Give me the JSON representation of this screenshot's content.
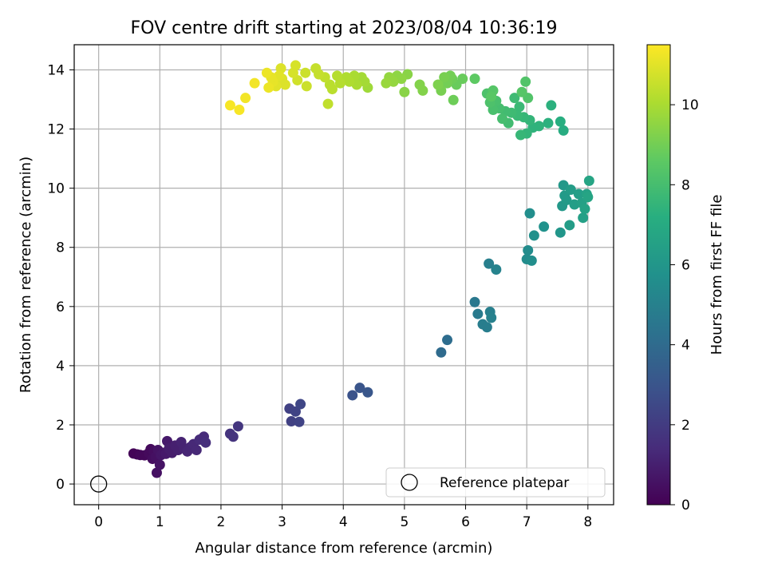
{
  "chart_data": {
    "type": "scatter",
    "title": "FOV centre drift starting at 2023/08/04 10:36:19",
    "xlabel": "Angular distance from reference (arcmin)",
    "ylabel": "Rotation from reference (arcmin)",
    "xlim": [
      -0.4,
      8.42
    ],
    "ylim": [
      -0.7,
      14.85
    ],
    "xticks": [
      "0",
      "1",
      "2",
      "3",
      "4",
      "5",
      "6",
      "7",
      "8"
    ],
    "yticks": [
      "0",
      "2",
      "4",
      "6",
      "8",
      "10",
      "12",
      "14"
    ],
    "grid": true,
    "legend": {
      "placement": "lower right",
      "entries": [
        "Reference platepar"
      ]
    },
    "colorbar": {
      "label": "Hours from first FF file",
      "colormap": "viridis",
      "range": [
        0,
        11.5
      ],
      "ticks": [
        "0",
        "2",
        "4",
        "6",
        "8",
        "10"
      ]
    },
    "reference_point": {
      "x": 0,
      "y": 0
    },
    "points": [
      [
        0.57,
        1.03,
        0.1
      ],
      [
        0.63,
        1.0,
        0.1
      ],
      [
        0.68,
        0.98,
        0.2
      ],
      [
        0.75,
        0.97,
        0.2
      ],
      [
        0.82,
        1.05,
        0.3
      ],
      [
        0.85,
        1.18,
        0.3
      ],
      [
        0.88,
        0.85,
        0.4
      ],
      [
        0.9,
        1.1,
        0.4
      ],
      [
        0.93,
        0.92,
        0.5
      ],
      [
        0.95,
        0.38,
        0.5
      ],
      [
        0.97,
        1.15,
        0.6
      ],
      [
        1.0,
        0.65,
        0.6
      ],
      [
        1.02,
        0.98,
        0.7
      ],
      [
        1.05,
        1.05,
        0.7
      ],
      [
        1.1,
        1.02,
        0.8
      ],
      [
        1.12,
        1.45,
        0.8
      ],
      [
        1.15,
        1.2,
        0.9
      ],
      [
        1.2,
        1.05,
        0.9
      ],
      [
        1.25,
        1.3,
        1.0
      ],
      [
        1.3,
        1.15,
        1.0
      ],
      [
        1.35,
        1.42,
        1.1
      ],
      [
        1.4,
        1.2,
        1.1
      ],
      [
        1.45,
        1.1,
        1.2
      ],
      [
        1.5,
        1.25,
        1.2
      ],
      [
        1.55,
        1.35,
        1.3
      ],
      [
        1.6,
        1.15,
        1.3
      ],
      [
        1.65,
        1.5,
        1.4
      ],
      [
        1.72,
        1.6,
        1.4
      ],
      [
        1.75,
        1.4,
        1.5
      ],
      [
        2.15,
        1.7,
        1.7
      ],
      [
        2.2,
        1.6,
        1.7
      ],
      [
        2.28,
        1.95,
        1.8
      ],
      [
        3.12,
        2.55,
        2.2
      ],
      [
        3.15,
        2.12,
        2.2
      ],
      [
        3.22,
        2.45,
        2.3
      ],
      [
        3.28,
        2.1,
        2.3
      ],
      [
        3.3,
        2.7,
        2.4
      ],
      [
        4.15,
        3.0,
        2.9
      ],
      [
        4.27,
        3.25,
        3.0
      ],
      [
        4.4,
        3.1,
        3.1
      ],
      [
        5.6,
        4.45,
        4.0
      ],
      [
        5.7,
        4.87,
        4.1
      ],
      [
        6.15,
        6.15,
        4.6
      ],
      [
        6.2,
        5.75,
        4.7
      ],
      [
        6.28,
        5.4,
        4.8
      ],
      [
        6.35,
        5.3,
        4.8
      ],
      [
        6.38,
        7.45,
        4.9
      ],
      [
        6.4,
        5.82,
        4.9
      ],
      [
        6.42,
        5.62,
        5.0
      ],
      [
        6.5,
        7.25,
        5.1
      ],
      [
        7.0,
        7.6,
        5.5
      ],
      [
        7.02,
        7.9,
        5.5
      ],
      [
        7.05,
        9.15,
        5.6
      ],
      [
        7.08,
        7.55,
        5.6
      ],
      [
        7.12,
        8.4,
        5.7
      ],
      [
        7.28,
        8.7,
        5.8
      ],
      [
        7.55,
        8.5,
        6.0
      ],
      [
        7.58,
        9.4,
        6.1
      ],
      [
        7.6,
        10.1,
        6.1
      ],
      [
        7.62,
        9.75,
        6.2
      ],
      [
        7.65,
        9.6,
        6.2
      ],
      [
        7.7,
        8.75,
        6.3
      ],
      [
        7.72,
        9.95,
        6.3
      ],
      [
        7.78,
        9.45,
        6.4
      ],
      [
        7.85,
        9.8,
        6.4
      ],
      [
        7.9,
        9.5,
        6.5
      ],
      [
        7.92,
        9.0,
        6.5
      ],
      [
        7.95,
        9.3,
        6.6
      ],
      [
        7.98,
        9.8,
        6.6
      ],
      [
        8.0,
        9.7,
        6.7
      ],
      [
        8.02,
        10.25,
        6.7
      ],
      [
        7.6,
        11.95,
        7.1
      ],
      [
        7.55,
        12.25,
        7.2
      ],
      [
        7.4,
        12.8,
        7.3
      ],
      [
        7.35,
        12.2,
        7.3
      ],
      [
        7.2,
        12.1,
        7.4
      ],
      [
        7.1,
        12.05,
        7.4
      ],
      [
        7.05,
        12.3,
        7.5
      ],
      [
        7.0,
        11.85,
        7.5
      ],
      [
        6.95,
        12.4,
        7.6
      ],
      [
        6.9,
        11.8,
        7.6
      ],
      [
        6.88,
        12.75,
        7.7
      ],
      [
        6.85,
        12.45,
        7.7
      ],
      [
        6.8,
        13.05,
        7.8
      ],
      [
        6.75,
        12.55,
        7.8
      ],
      [
        6.7,
        12.2,
        7.9
      ],
      [
        6.65,
        12.6,
        7.9
      ],
      [
        6.6,
        12.35,
        8.0
      ],
      [
        6.55,
        12.7,
        8.0
      ],
      [
        6.5,
        12.95,
        8.1
      ],
      [
        6.45,
        12.65,
        8.1
      ],
      [
        6.4,
        12.9,
        8.2
      ],
      [
        6.35,
        13.2,
        8.2
      ],
      [
        6.98,
        13.6,
        8.3
      ],
      [
        7.02,
        13.05,
        8.3
      ],
      [
        6.92,
        13.25,
        8.4
      ],
      [
        6.45,
        13.3,
        8.4
      ],
      [
        6.42,
        13.1,
        8.5
      ],
      [
        6.15,
        13.7,
        8.6
      ],
      [
        5.95,
        13.7,
        8.8
      ],
      [
        5.85,
        13.5,
        8.8
      ],
      [
        5.8,
        12.98,
        8.9
      ],
      [
        5.78,
        13.7,
        8.9
      ],
      [
        5.75,
        13.8,
        9.0
      ],
      [
        5.7,
        13.55,
        9.0
      ],
      [
        5.65,
        13.75,
        9.1
      ],
      [
        5.6,
        13.3,
        9.1
      ],
      [
        5.55,
        13.5,
        9.2
      ],
      [
        5.3,
        13.3,
        9.3
      ],
      [
        5.25,
        13.5,
        9.3
      ],
      [
        5.05,
        13.85,
        9.4
      ],
      [
        5.0,
        13.25,
        9.4
      ],
      [
        4.95,
        13.7,
        9.5
      ],
      [
        4.88,
        13.8,
        9.5
      ],
      [
        4.82,
        13.6,
        9.6
      ],
      [
        4.75,
        13.75,
        9.6
      ],
      [
        4.7,
        13.55,
        9.7
      ],
      [
        4.4,
        13.4,
        9.8
      ],
      [
        4.35,
        13.6,
        9.9
      ],
      [
        4.3,
        13.75,
        9.9
      ],
      [
        4.22,
        13.5,
        10.0
      ],
      [
        4.18,
        13.8,
        10.0
      ],
      [
        4.1,
        13.6,
        10.1
      ],
      [
        4.05,
        13.75,
        10.1
      ],
      [
        3.95,
        13.55,
        10.2
      ],
      [
        3.9,
        13.8,
        10.2
      ],
      [
        3.82,
        13.35,
        10.3
      ],
      [
        3.78,
        13.5,
        10.3
      ],
      [
        3.75,
        12.85,
        10.4
      ],
      [
        3.7,
        13.75,
        10.4
      ],
      [
        3.6,
        13.85,
        10.5
      ],
      [
        3.55,
        14.05,
        10.5
      ],
      [
        3.4,
        13.45,
        10.6
      ],
      [
        3.38,
        13.9,
        10.6
      ],
      [
        3.25,
        13.65,
        10.7
      ],
      [
        3.22,
        14.15,
        10.8
      ],
      [
        3.18,
        13.9,
        10.8
      ],
      [
        3.05,
        13.5,
        10.9
      ],
      [
        3.0,
        13.7,
        10.9
      ],
      [
        2.98,
        14.05,
        10.9
      ],
      [
        2.95,
        13.8,
        11.0
      ],
      [
        2.9,
        13.45,
        11.0
      ],
      [
        2.85,
        13.6,
        11.1
      ],
      [
        2.82,
        13.75,
        11.1
      ],
      [
        2.78,
        13.4,
        11.2
      ],
      [
        2.75,
        13.9,
        11.2
      ],
      [
        2.55,
        13.55,
        11.3
      ],
      [
        2.4,
        13.05,
        11.3
      ],
      [
        2.3,
        12.65,
        11.4
      ],
      [
        2.15,
        12.8,
        11.4
      ]
    ]
  }
}
